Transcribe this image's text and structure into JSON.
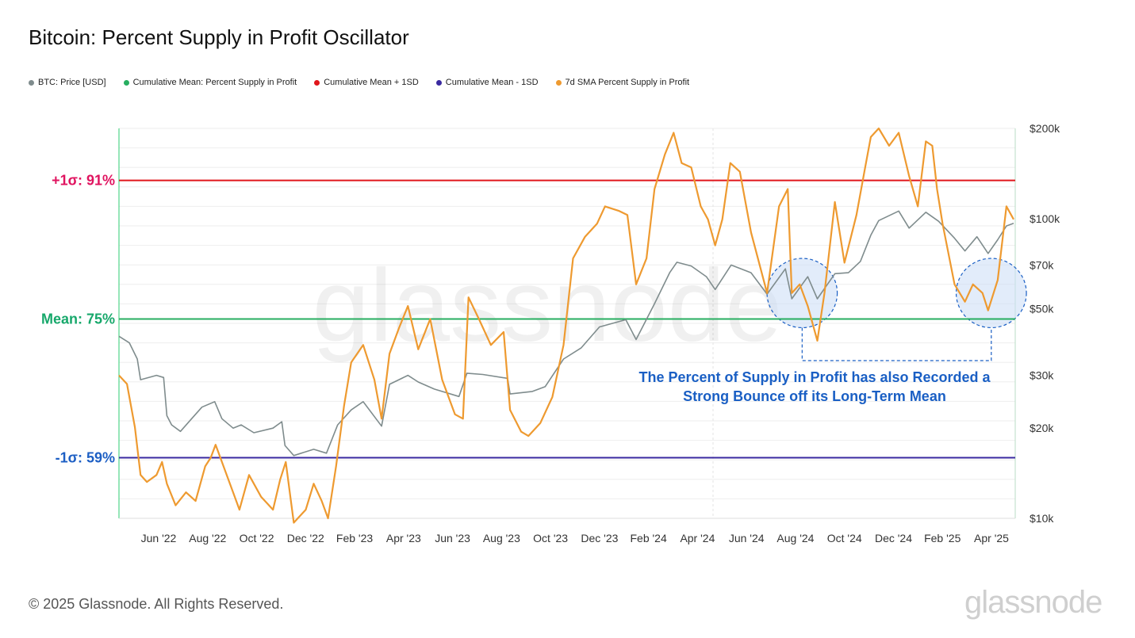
{
  "title": "Bitcoin: Percent Supply in Profit Oscillator",
  "legend": [
    {
      "label": "BTC: Price [USD]",
      "color": "#7f8c8d"
    },
    {
      "label": "Cumulative Mean: Percent Supply in Profit",
      "color": "#27ae60"
    },
    {
      "label": "Cumulative Mean + 1SD",
      "color": "#e0161b"
    },
    {
      "label": "Cumulative Mean - 1SD",
      "color": "#3a2aa0"
    },
    {
      "label": "7d SMA Percent Supply in Profit",
      "color": "#ee9a30"
    }
  ],
  "footer": "© 2025 Glassnode. All Rights Reserved.",
  "brand": "glassnode",
  "watermark": "glassnode",
  "annotation": "The Percent of Supply in Profit has also Recorded a\nStrong Bounce off its Long-Term Mean",
  "chart_data": {
    "type": "line",
    "x_ticks": [
      "Jun '22",
      "Aug '22",
      "Oct '22",
      "Dec '22",
      "Feb '23",
      "Apr '23",
      "Jun '23",
      "Aug '23",
      "Oct '23",
      "Dec '23",
      "Feb '24",
      "Apr '24",
      "Jun '24",
      "Aug '24",
      "Oct '24",
      "Dec '24",
      "Feb '25",
      "Apr '25"
    ],
    "x_range": [
      "2022-04-15",
      "2025-05-12"
    ],
    "y_left_range": [
      52,
      97
    ],
    "y_right_scale": "log",
    "y_right_range": [
      10000,
      200000
    ],
    "y_right_ticks": [
      {
        "value": 200000,
        "label": "$200k"
      },
      {
        "value": 100000,
        "label": "$100k"
      },
      {
        "value": 70000,
        "label": "$70k"
      },
      {
        "value": 50000,
        "label": "$50k"
      },
      {
        "value": 30000,
        "label": "$30k"
      },
      {
        "value": 20000,
        "label": "$20k"
      },
      {
        "value": 10000,
        "label": "$10k"
      }
    ],
    "reference_lines": [
      {
        "name": "Cumulative Mean + 1SD",
        "label": "+1σ: 91%",
        "value": 91,
        "color": "#e0161b",
        "label_color": "#e0135f"
      },
      {
        "name": "Cumulative Mean: Percent Supply in Profit",
        "label": "Mean: 75%",
        "value": 75,
        "color": "#27ae60",
        "label_color": "#17a86b"
      },
      {
        "name": "Cumulative Mean - 1SD",
        "label": "-1σ: 59%",
        "value": 59,
        "color": "#3a2aa0",
        "label_color": "#1d5fc4"
      }
    ],
    "series": [
      {
        "name": "BTC: Price [USD]",
        "axis": "right",
        "color": "#7f8c8d",
        "points": [
          [
            "2022-04-15",
            40500
          ],
          [
            "2022-04-28",
            38500
          ],
          [
            "2022-05-08",
            34000
          ],
          [
            "2022-05-12",
            29000
          ],
          [
            "2022-06-01",
            30000
          ],
          [
            "2022-06-10",
            29500
          ],
          [
            "2022-06-14",
            22000
          ],
          [
            "2022-06-20",
            20500
          ],
          [
            "2022-07-01",
            19500
          ],
          [
            "2022-07-15",
            21500
          ],
          [
            "2022-07-28",
            23500
          ],
          [
            "2022-08-13",
            24500
          ],
          [
            "2022-08-22",
            21500
          ],
          [
            "2022-09-05",
            20000
          ],
          [
            "2022-09-15",
            20500
          ],
          [
            "2022-10-01",
            19300
          ],
          [
            "2022-10-25",
            20000
          ],
          [
            "2022-11-05",
            21000
          ],
          [
            "2022-11-09",
            17500
          ],
          [
            "2022-11-20",
            16200
          ],
          [
            "2022-12-15",
            17000
          ],
          [
            "2022-12-31",
            16500
          ],
          [
            "2023-01-14",
            20500
          ],
          [
            "2023-01-31",
            23000
          ],
          [
            "2023-02-15",
            24500
          ],
          [
            "2023-03-10",
            20300
          ],
          [
            "2023-03-20",
            28000
          ],
          [
            "2023-04-12",
            30000
          ],
          [
            "2023-04-25",
            28500
          ],
          [
            "2023-05-15",
            27000
          ],
          [
            "2023-06-15",
            25500
          ],
          [
            "2023-06-25",
            30500
          ],
          [
            "2023-07-15",
            30200
          ],
          [
            "2023-08-15",
            29300
          ],
          [
            "2023-08-18",
            26000
          ],
          [
            "2023-09-15",
            26500
          ],
          [
            "2023-10-01",
            27500
          ],
          [
            "2023-10-24",
            34000
          ],
          [
            "2023-11-15",
            37000
          ],
          [
            "2023-12-08",
            43500
          ],
          [
            "2024-01-10",
            46000
          ],
          [
            "2024-01-23",
            39500
          ],
          [
            "2024-02-15",
            52000
          ],
          [
            "2024-03-05",
            66000
          ],
          [
            "2024-03-14",
            71500
          ],
          [
            "2024-04-01",
            69500
          ],
          [
            "2024-04-20",
            64000
          ],
          [
            "2024-05-01",
            58000
          ],
          [
            "2024-05-21",
            70000
          ],
          [
            "2024-06-15",
            66000
          ],
          [
            "2024-07-05",
            56000
          ],
          [
            "2024-07-28",
            68000
          ],
          [
            "2024-08-05",
            54000
          ],
          [
            "2024-08-25",
            64000
          ],
          [
            "2024-09-06",
            54000
          ],
          [
            "2024-09-28",
            65500
          ],
          [
            "2024-10-15",
            66000
          ],
          [
            "2024-10-30",
            72000
          ],
          [
            "2024-11-12",
            88000
          ],
          [
            "2024-11-22",
            98500
          ],
          [
            "2024-12-17",
            106000
          ],
          [
            "2024-12-30",
            93000
          ],
          [
            "2025-01-20",
            105000
          ],
          [
            "2025-02-05",
            98000
          ],
          [
            "2025-02-25",
            86000
          ],
          [
            "2025-03-10",
            78000
          ],
          [
            "2025-03-25",
            87000
          ],
          [
            "2025-04-08",
            76500
          ],
          [
            "2025-04-20",
            85000
          ],
          [
            "2025-05-01",
            94500
          ],
          [
            "2025-05-10",
            96500
          ]
        ]
      },
      {
        "name": "7d SMA Percent Supply in Profit",
        "axis": "left",
        "color": "#ee9a30",
        "points": [
          [
            "2022-04-15",
            68.5
          ],
          [
            "2022-04-25",
            67.5
          ],
          [
            "2022-05-05",
            62.5
          ],
          [
            "2022-05-12",
            57.0
          ],
          [
            "2022-05-20",
            56.2
          ],
          [
            "2022-06-01",
            57.0
          ],
          [
            "2022-06-08",
            58.5
          ],
          [
            "2022-06-14",
            56.0
          ],
          [
            "2022-06-25",
            53.5
          ],
          [
            "2022-07-08",
            55.0
          ],
          [
            "2022-07-20",
            54.0
          ],
          [
            "2022-08-01",
            58.0
          ],
          [
            "2022-08-08",
            59.0
          ],
          [
            "2022-08-14",
            60.5
          ],
          [
            "2022-08-22",
            58.5
          ],
          [
            "2022-09-05",
            55.0
          ],
          [
            "2022-09-13",
            53.0
          ],
          [
            "2022-09-25",
            57.0
          ],
          [
            "2022-10-10",
            54.5
          ],
          [
            "2022-10-25",
            53.0
          ],
          [
            "2022-11-03",
            56.5
          ],
          [
            "2022-11-10",
            58.5
          ],
          [
            "2022-11-20",
            51.5
          ],
          [
            "2022-12-05",
            53.0
          ],
          [
            "2022-12-15",
            56.0
          ],
          [
            "2022-12-25",
            54.0
          ],
          [
            "2023-01-02",
            52.0
          ],
          [
            "2023-01-12",
            58.0
          ],
          [
            "2023-01-22",
            65.0
          ],
          [
            "2023-01-31",
            70.0
          ],
          [
            "2023-02-15",
            72.0
          ],
          [
            "2023-03-01",
            68.0
          ],
          [
            "2023-03-10",
            63.5
          ],
          [
            "2023-03-20",
            71.0
          ],
          [
            "2023-04-01",
            74.0
          ],
          [
            "2023-04-12",
            76.5
          ],
          [
            "2023-04-25",
            71.5
          ],
          [
            "2023-05-10",
            75.0
          ],
          [
            "2023-05-25",
            68.0
          ],
          [
            "2023-06-10",
            64.0
          ],
          [
            "2023-06-20",
            63.5
          ],
          [
            "2023-06-27",
            77.5
          ],
          [
            "2023-07-10",
            75.0
          ],
          [
            "2023-07-25",
            72.0
          ],
          [
            "2023-08-10",
            73.5
          ],
          [
            "2023-08-18",
            64.5
          ],
          [
            "2023-09-01",
            62.0
          ],
          [
            "2023-09-10",
            61.5
          ],
          [
            "2023-09-25",
            63.0
          ],
          [
            "2023-10-10",
            66.0
          ],
          [
            "2023-10-24",
            72.0
          ],
          [
            "2023-11-05",
            82.0
          ],
          [
            "2023-11-20",
            84.5
          ],
          [
            "2023-12-05",
            86.0
          ],
          [
            "2023-12-15",
            88.0
          ],
          [
            "2024-01-01",
            87.5
          ],
          [
            "2024-01-12",
            87.0
          ],
          [
            "2024-01-23",
            79.0
          ],
          [
            "2024-02-05",
            82.0
          ],
          [
            "2024-02-15",
            90.0
          ],
          [
            "2024-02-28",
            94.0
          ],
          [
            "2024-03-10",
            96.5
          ],
          [
            "2024-03-20",
            93.0
          ],
          [
            "2024-04-01",
            92.5
          ],
          [
            "2024-04-13",
            88.0
          ],
          [
            "2024-04-22",
            86.5
          ],
          [
            "2024-05-01",
            83.5
          ],
          [
            "2024-05-10",
            86.5
          ],
          [
            "2024-05-20",
            93.0
          ],
          [
            "2024-06-01",
            92.0
          ],
          [
            "2024-06-15",
            85.0
          ],
          [
            "2024-07-05",
            78.0
          ],
          [
            "2024-07-20",
            88.0
          ],
          [
            "2024-07-31",
            90.0
          ],
          [
            "2024-08-05",
            78.0
          ],
          [
            "2024-08-15",
            79.0
          ],
          [
            "2024-08-25",
            76.5
          ],
          [
            "2024-09-06",
            72.5
          ],
          [
            "2024-09-15",
            78.0
          ],
          [
            "2024-09-28",
            88.5
          ],
          [
            "2024-10-10",
            81.5
          ],
          [
            "2024-10-25",
            87.0
          ],
          [
            "2024-11-05",
            92.5
          ],
          [
            "2024-11-12",
            96.0
          ],
          [
            "2024-11-22",
            97.0
          ],
          [
            "2024-12-05",
            95.0
          ],
          [
            "2024-12-17",
            96.5
          ],
          [
            "2024-12-30",
            91.5
          ],
          [
            "2025-01-10",
            88.0
          ],
          [
            "2025-01-20",
            95.5
          ],
          [
            "2025-01-28",
            95.0
          ],
          [
            "2025-02-03",
            90.0
          ],
          [
            "2025-02-10",
            86.0
          ],
          [
            "2025-02-25",
            79.0
          ],
          [
            "2025-03-10",
            77.0
          ],
          [
            "2025-03-20",
            79.0
          ],
          [
            "2025-04-01",
            78.0
          ],
          [
            "2025-04-08",
            76.0
          ],
          [
            "2025-04-20",
            79.5
          ],
          [
            "2025-05-01",
            88.0
          ],
          [
            "2025-05-10",
            86.5
          ]
        ]
      }
    ],
    "highlights": [
      {
        "center": [
          "2024-08-18",
          78.0
        ],
        "radius_days": 44,
        "radius_pct": 4.0
      },
      {
        "center": [
          "2025-04-12",
          78.0
        ],
        "radius_days": 44,
        "radius_pct": 4.0
      }
    ]
  }
}
